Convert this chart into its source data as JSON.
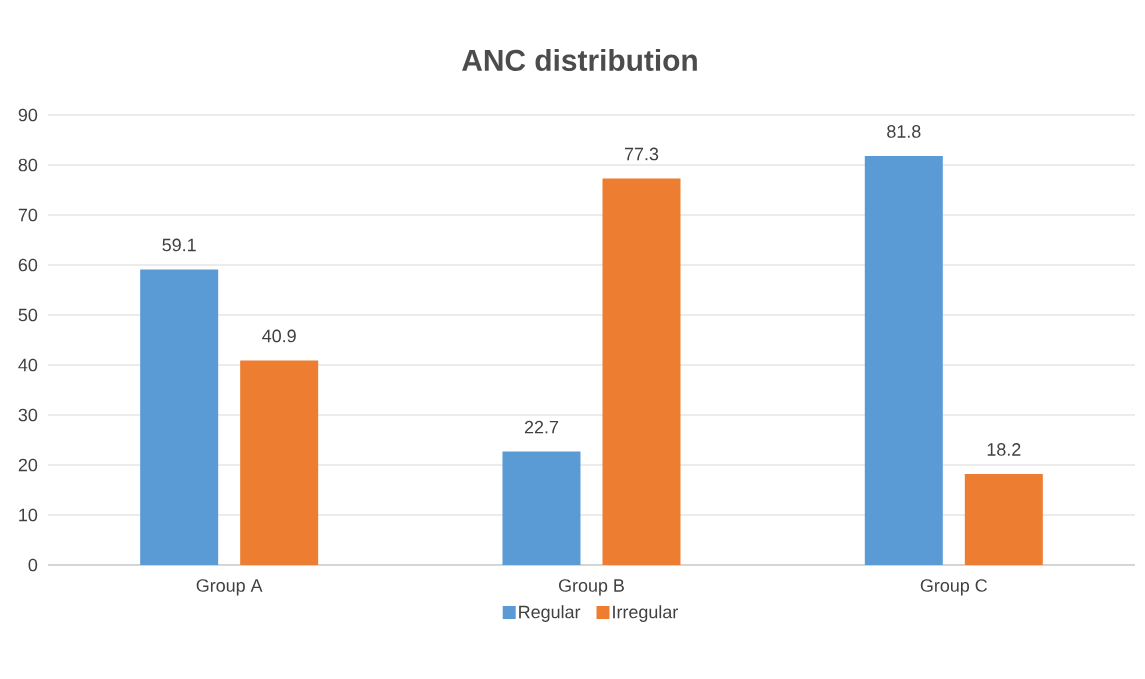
{
  "chart_data": {
    "type": "bar",
    "title": "ANC distribution",
    "categories": [
      "Group A",
      "Group B",
      "Group C"
    ],
    "series": [
      {
        "name": "Regular",
        "color": "#5b9bd5",
        "values": [
          59.1,
          22.7,
          81.8
        ]
      },
      {
        "name": "Irregular",
        "color": "#ed7d31",
        "values": [
          40.9,
          77.3,
          18.2
        ]
      }
    ],
    "ylim": [
      0,
      90
    ],
    "yticks": [
      0,
      10,
      20,
      30,
      40,
      50,
      60,
      70,
      80,
      90
    ],
    "grid": "y",
    "legend": "bottom",
    "data_labels": true
  }
}
